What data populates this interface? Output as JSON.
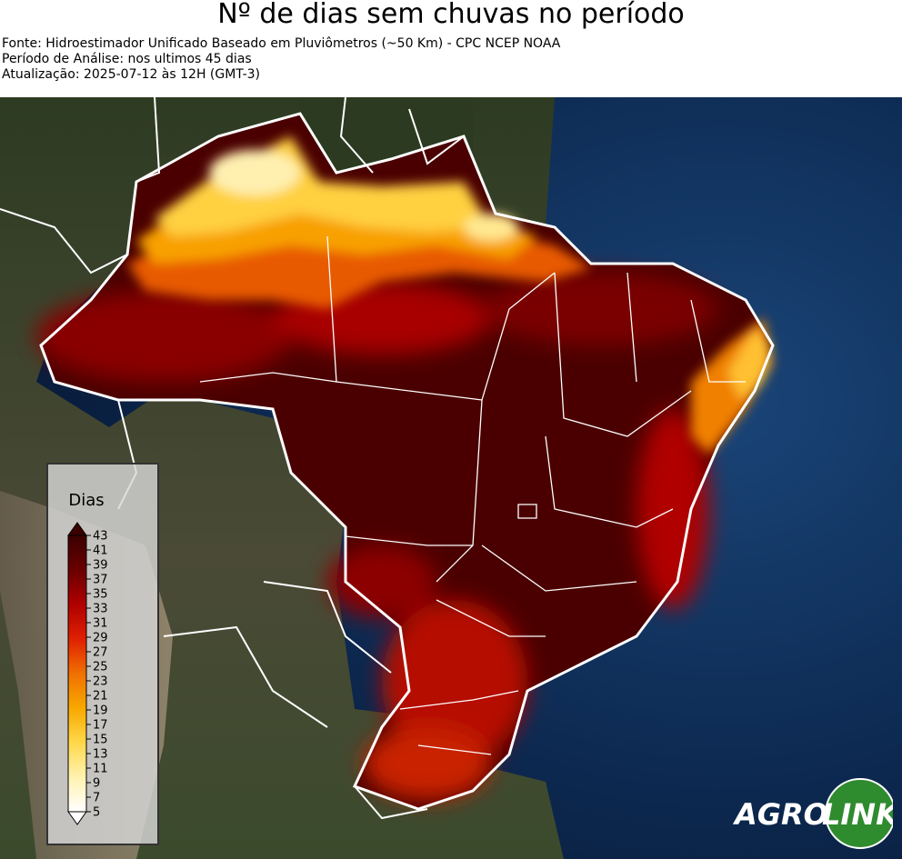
{
  "title": "Nº de dias sem chuvas no período",
  "source_line": "Fonte: Hidroestimador Unificado Baseado em Pluviômetros (~50 Km) - CPC NCEP NOAA",
  "period_line": "Período de Análise: nos ultimos 45 dias",
  "update_line": "Atualização: 2025-07-12 às 12H (GMT-3)",
  "legend": {
    "title": "Dias",
    "ticks": [
      "43",
      "41",
      "39",
      "37",
      "35",
      "33",
      "31",
      "29",
      "27",
      "25",
      "23",
      "21",
      "19",
      "17",
      "15",
      "13",
      "11",
      "9",
      "7",
      "5"
    ],
    "colors": {
      "max": "#3b0000",
      "high": "#6a0000",
      "mid_high": "#b00000",
      "mid": "#e02000",
      "orange": "#f07000",
      "amber": "#f8a800",
      "yellow": "#ffd84a",
      "pale": "#fff2b0",
      "min": "#ffffff"
    }
  },
  "logo": {
    "text_left": "AGRO",
    "text_right": "LINK",
    "circle_color": "#2e8b2e"
  },
  "colors": {
    "ocean": "#0d2a52",
    "land": "#3a4a30",
    "borders": "#ffffff"
  }
}
